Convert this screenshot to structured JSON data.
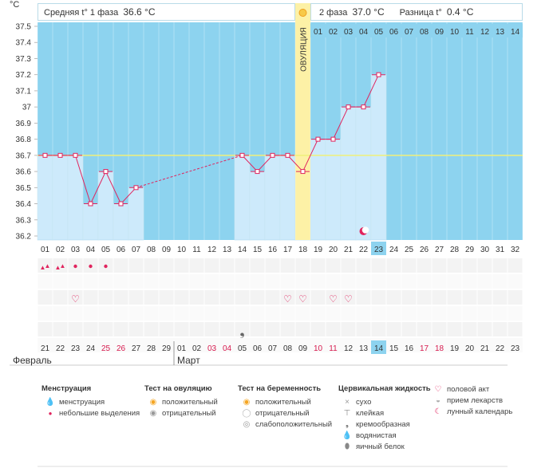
{
  "axis": {
    "unit": "°C",
    "y_min": 36.2,
    "y_max": 37.5,
    "y_step": 0.1,
    "y_ticks": [
      "37.5",
      "37.4",
      "37.3",
      "37.2",
      "37.1",
      "37",
      "36.9",
      "36.8",
      "36.7",
      "36.6",
      "36.5",
      "36.4",
      "36.3",
      "36.2"
    ],
    "coverline": 36.7
  },
  "header": {
    "phase1_label": "Средняя t° 1 фаза",
    "phase1_value": "36.6 °C",
    "phase2_label": "2 фаза",
    "phase2_value": "37.0 °C",
    "diff_label": "Разница t°",
    "diff_value": "0.4 °C"
  },
  "ovulation_label": "ОВУЛЯЦИЯ",
  "ovulation_day_index": 17,
  "postovulation_days": [
    "01",
    "02",
    "03",
    "04",
    "05",
    "06",
    "07",
    "08",
    "09",
    "10",
    "11",
    "12",
    "13",
    "14"
  ],
  "cycle_days": [
    "01",
    "02",
    "03",
    "04",
    "05",
    "06",
    "07",
    "08",
    "09",
    "10",
    "11",
    "12",
    "13",
    "14",
    "15",
    "16",
    "17",
    "18",
    "19",
    "20",
    "21",
    "22",
    "23",
    "24",
    "25",
    "26",
    "27",
    "28",
    "29",
    "30",
    "31",
    "32"
  ],
  "current_day_index": 22,
  "temps": [
    36.7,
    36.7,
    36.7,
    36.4,
    36.6,
    36.4,
    36.5,
    null,
    null,
    null,
    null,
    null,
    null,
    36.7,
    36.6,
    36.7,
    36.7,
    36.6,
    36.8,
    36.8,
    37.0,
    37.0,
    37.2,
    null,
    null,
    null,
    null,
    null,
    null,
    null,
    null,
    null
  ],
  "dashed_segment": [
    6,
    13
  ],
  "moon_day_index": 21,
  "menstruation": {
    "large": [
      0,
      1
    ],
    "small": [
      2,
      3,
      4
    ]
  },
  "intercourse_days": [
    2,
    16,
    17,
    19,
    20
  ],
  "cervical_creamy_days": [
    13
  ],
  "dates": [
    {
      "d": "21",
      "red": false
    },
    {
      "d": "22",
      "red": false
    },
    {
      "d": "23",
      "red": false
    },
    {
      "d": "24",
      "red": false
    },
    {
      "d": "25",
      "red": true
    },
    {
      "d": "26",
      "red": true
    },
    {
      "d": "27",
      "red": false
    },
    {
      "d": "28",
      "red": false
    },
    {
      "d": "29",
      "red": false
    },
    {
      "d": "01",
      "red": false
    },
    {
      "d": "02",
      "red": false
    },
    {
      "d": "03",
      "red": true
    },
    {
      "d": "04",
      "red": true
    },
    {
      "d": "05",
      "red": false
    },
    {
      "d": "06",
      "red": false
    },
    {
      "d": "07",
      "red": false
    },
    {
      "d": "08",
      "red": false
    },
    {
      "d": "09",
      "red": false
    },
    {
      "d": "10",
      "red": true
    },
    {
      "d": "11",
      "red": true
    },
    {
      "d": "12",
      "red": false
    },
    {
      "d": "13",
      "red": false
    },
    {
      "d": "14",
      "red": false
    },
    {
      "d": "15",
      "red": false
    },
    {
      "d": "16",
      "red": false
    },
    {
      "d": "17",
      "red": true
    },
    {
      "d": "18",
      "red": true
    },
    {
      "d": "19",
      "red": false
    },
    {
      "d": "20",
      "red": false
    },
    {
      "d": "21",
      "red": false
    },
    {
      "d": "22",
      "red": false
    },
    {
      "d": "23",
      "red": false
    }
  ],
  "months": {
    "first": "Февраль",
    "second": "Март"
  },
  "legend": {
    "menstruation": {
      "title": "Менструация",
      "items": [
        "менструация",
        "небольшие выделения"
      ]
    },
    "ovulation_test": {
      "title": "Тест на овуляцию",
      "items": [
        "положительный",
        "отрицательный"
      ]
    },
    "pregnancy_test": {
      "title": "Тест на беременность",
      "items": [
        "положительный",
        "отрицательный",
        "слабоположительный"
      ]
    },
    "cervical": {
      "title": "Цервикальная жидкость",
      "items": [
        "сухо",
        "клейкая",
        "кремообразная",
        "водянистая",
        "яичный белок"
      ]
    },
    "other": {
      "items": [
        "половой акт",
        "прием лекарств",
        "лунный календарь"
      ]
    }
  },
  "colors": {
    "bg_blue": "#8dd3ef",
    "bar": "#cdeafb",
    "ovulation": "#fdf1a6",
    "line": "#e0245e",
    "coverline": "#f0f07a",
    "today": "#8dd3ef"
  }
}
